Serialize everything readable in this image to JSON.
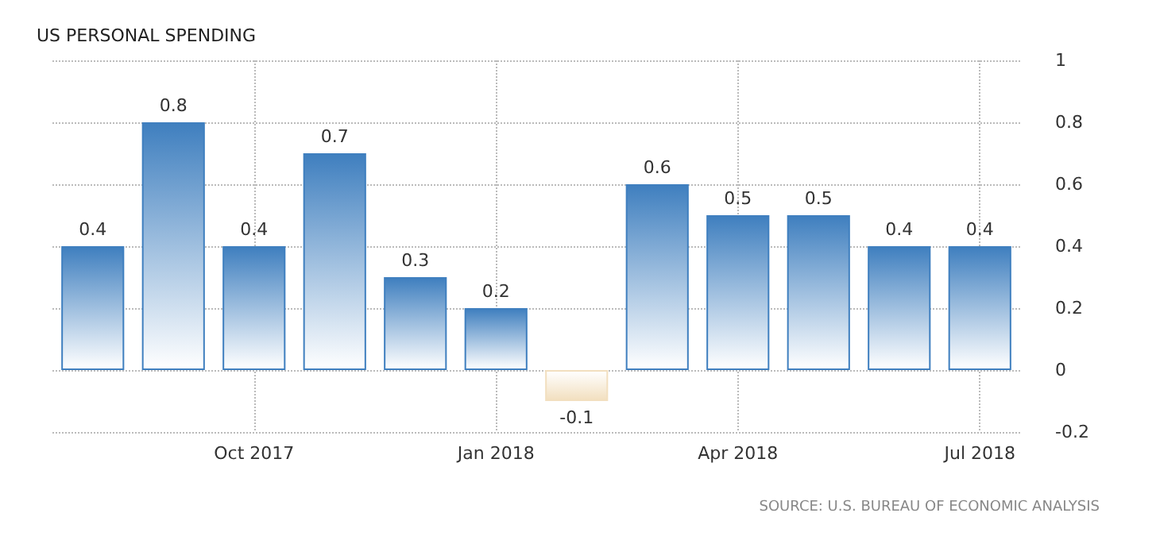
{
  "chart_data": {
    "type": "bar",
    "title": "US PERSONAL SPENDING",
    "categories": [
      null,
      null,
      "Oct 2017",
      null,
      null,
      "Jan 2018",
      null,
      null,
      "Apr 2018",
      null,
      null,
      "Jul 2018"
    ],
    "values": [
      0.4,
      0.8,
      0.4,
      0.7,
      0.3,
      0.2,
      -0.1,
      0.6,
      0.5,
      0.5,
      0.4,
      0.4
    ],
    "colors": [
      "#3f7fbf",
      "#3f7fbf",
      "#3f7fbf",
      "#3f7fbf",
      "#3f7fbf",
      "#3f7fbf",
      "#f2dfbf",
      "#3f7fbf",
      "#3f7fbf",
      "#3f7fbf",
      "#3f7fbf",
      "#3f7fbf"
    ],
    "ylim": [
      -0.2,
      1
    ],
    "yticks": [
      -0.2,
      0,
      0.2,
      0.4,
      0.6,
      0.8,
      1
    ],
    "grid": true,
    "data_labels": true,
    "annotations": [
      "SOURCE: U.S. BUREAU OF ECONOMIC ANALYSIS"
    ]
  }
}
